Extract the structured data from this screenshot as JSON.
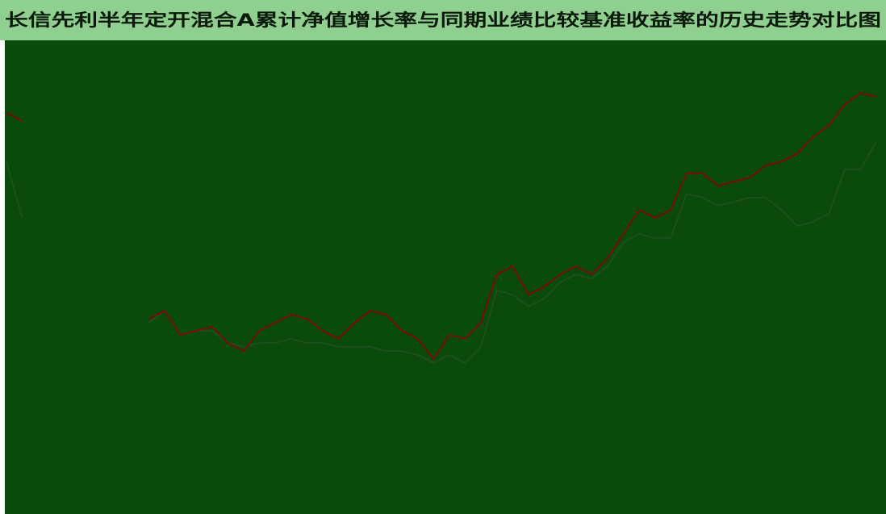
{
  "chart_data": {
    "type": "line",
    "title": "长信先利半年定开混合A累计净值增长率与同期业绩比较基准收益率的历史走势对比图",
    "categories": [
      null,
      null,
      null,
      null,
      null,
      null,
      null,
      null,
      null,
      null,
      null,
      null,
      null,
      null,
      null,
      null,
      null,
      null,
      null,
      null,
      null,
      null,
      null,
      null,
      null,
      null,
      null,
      null,
      null,
      null,
      null,
      null,
      null,
      null,
      null,
      null,
      null,
      null,
      null,
      null,
      null,
      null,
      null,
      null,
      null,
      null,
      null,
      null,
      null,
      null,
      null,
      null,
      null,
      null,
      null,
      null
    ],
    "ylim": [
      0,
      100
    ],
    "series": [
      {
        "color": "#7a0b0b",
        "values": [
          84.7,
          83.0,
          null,
          null,
          null,
          null,
          null,
          null,
          null,
          41.2,
          42.9,
          37.8,
          38.7,
          39.5,
          36.1,
          34.4,
          38.7,
          40.4,
          42.1,
          41.2,
          38.7,
          37.0,
          40.4,
          42.9,
          42.1,
          38.7,
          37.0,
          32.7,
          37.8,
          37.0,
          40.4,
          50.6,
          52.3,
          46.3,
          48.0,
          50.6,
          52.3,
          50.6,
          54.0,
          59.1,
          64.2,
          62.5,
          64.2,
          71.9,
          71.9,
          69.3,
          70.2,
          71.0,
          73.6,
          74.4,
          76.1,
          79.6,
          82.1,
          86.4,
          88.9,
          88.1
        ]
      },
      {
        "color": "#1f4f1f",
        "values": [
          74.4,
          62.5,
          null,
          null,
          null,
          null,
          null,
          null,
          null,
          40.4,
          42.9,
          37.8,
          38.7,
          38.7,
          36.1,
          35.3,
          36.1,
          36.1,
          37.0,
          36.1,
          36.1,
          35.3,
          35.3,
          35.3,
          34.4,
          34.4,
          33.6,
          31.9,
          33.6,
          31.9,
          35.3,
          47.2,
          46.3,
          43.8,
          45.5,
          48.9,
          50.6,
          49.7,
          52.3,
          57.4,
          59.1,
          58.3,
          58.3,
          67.6,
          66.8,
          65.1,
          65.9,
          66.8,
          66.8,
          64.2,
          60.8,
          61.7,
          63.4,
          72.7,
          72.7,
          78.7
        ]
      }
    ]
  }
}
